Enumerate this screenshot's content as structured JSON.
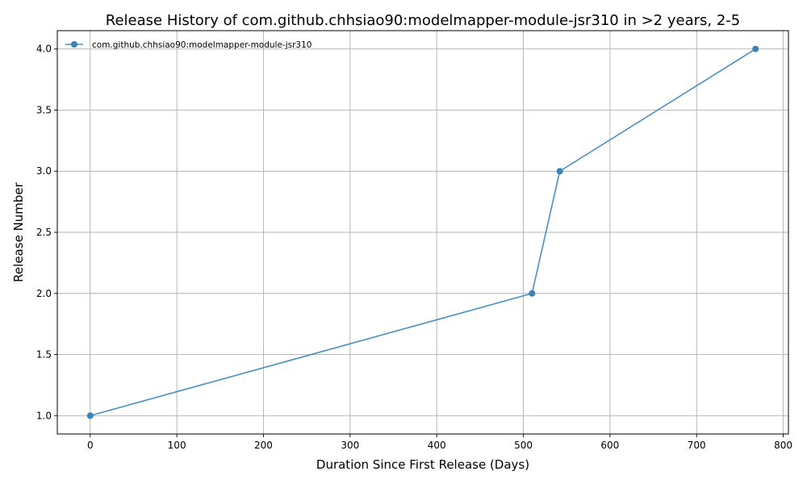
{
  "chart_data": {
    "type": "line",
    "title": "Release History of com.github.chhsiao90:modelmapper-module-jsr310 in >2 years, 2-5",
    "xlabel": "Duration Since First Release (Days)",
    "ylabel": "Release Number",
    "xlim": [
      -38,
      806
    ],
    "ylim": [
      0.85,
      4.15
    ],
    "xticks": [
      0,
      100,
      200,
      300,
      400,
      500,
      600,
      700,
      800
    ],
    "xtick_labels": [
      "0",
      "100",
      "200",
      "300",
      "400",
      "500",
      "600",
      "700",
      "800"
    ],
    "yticks": [
      1.0,
      1.5,
      2.0,
      2.5,
      3.0,
      3.5,
      4.0
    ],
    "ytick_labels": [
      "1.0",
      "1.5",
      "2.0",
      "2.5",
      "3.0",
      "3.5",
      "4.0"
    ],
    "grid": true,
    "legend_position": "top-left",
    "series": [
      {
        "name": "com.github.chhsiao90:modelmapper-module-jsr310",
        "color": "#4a90c0",
        "marker": "circle",
        "x": [
          0,
          510,
          542,
          768
        ],
        "y": [
          1,
          2,
          3,
          4
        ]
      }
    ]
  }
}
